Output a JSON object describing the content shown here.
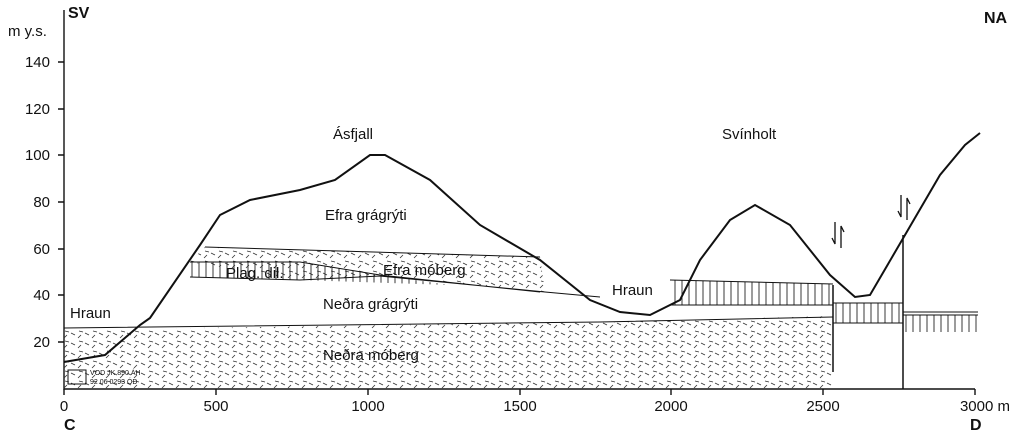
{
  "header": {
    "left": "SV",
    "right": "NA"
  },
  "axes": {
    "y_label": "m y.s.",
    "y_ticks": [
      "20",
      "40",
      "60",
      "80",
      "100",
      "120",
      "140"
    ],
    "x_ticks": [
      "0",
      "500",
      "1000",
      "1500",
      "2000",
      "2500",
      "3000 m"
    ],
    "x_start": "C",
    "x_end": "D"
  },
  "labels": {
    "peak_1": "Ásfjall",
    "peak_2": "Svínholt",
    "upper_basalt": "Efra grágrýti",
    "upper_hyaloclastite": "Efra móberg",
    "plag": "Plag. dil.",
    "lower_basalt": "Neðra grágrýti",
    "lower_hyaloclastite": "Neðra móberg",
    "lava_1": "Hraun",
    "lava_2": "Hraun"
  },
  "stamp": [
    "VOD JK 890 ÁH",
    "92 06 0293 ÓÐ"
  ]
}
